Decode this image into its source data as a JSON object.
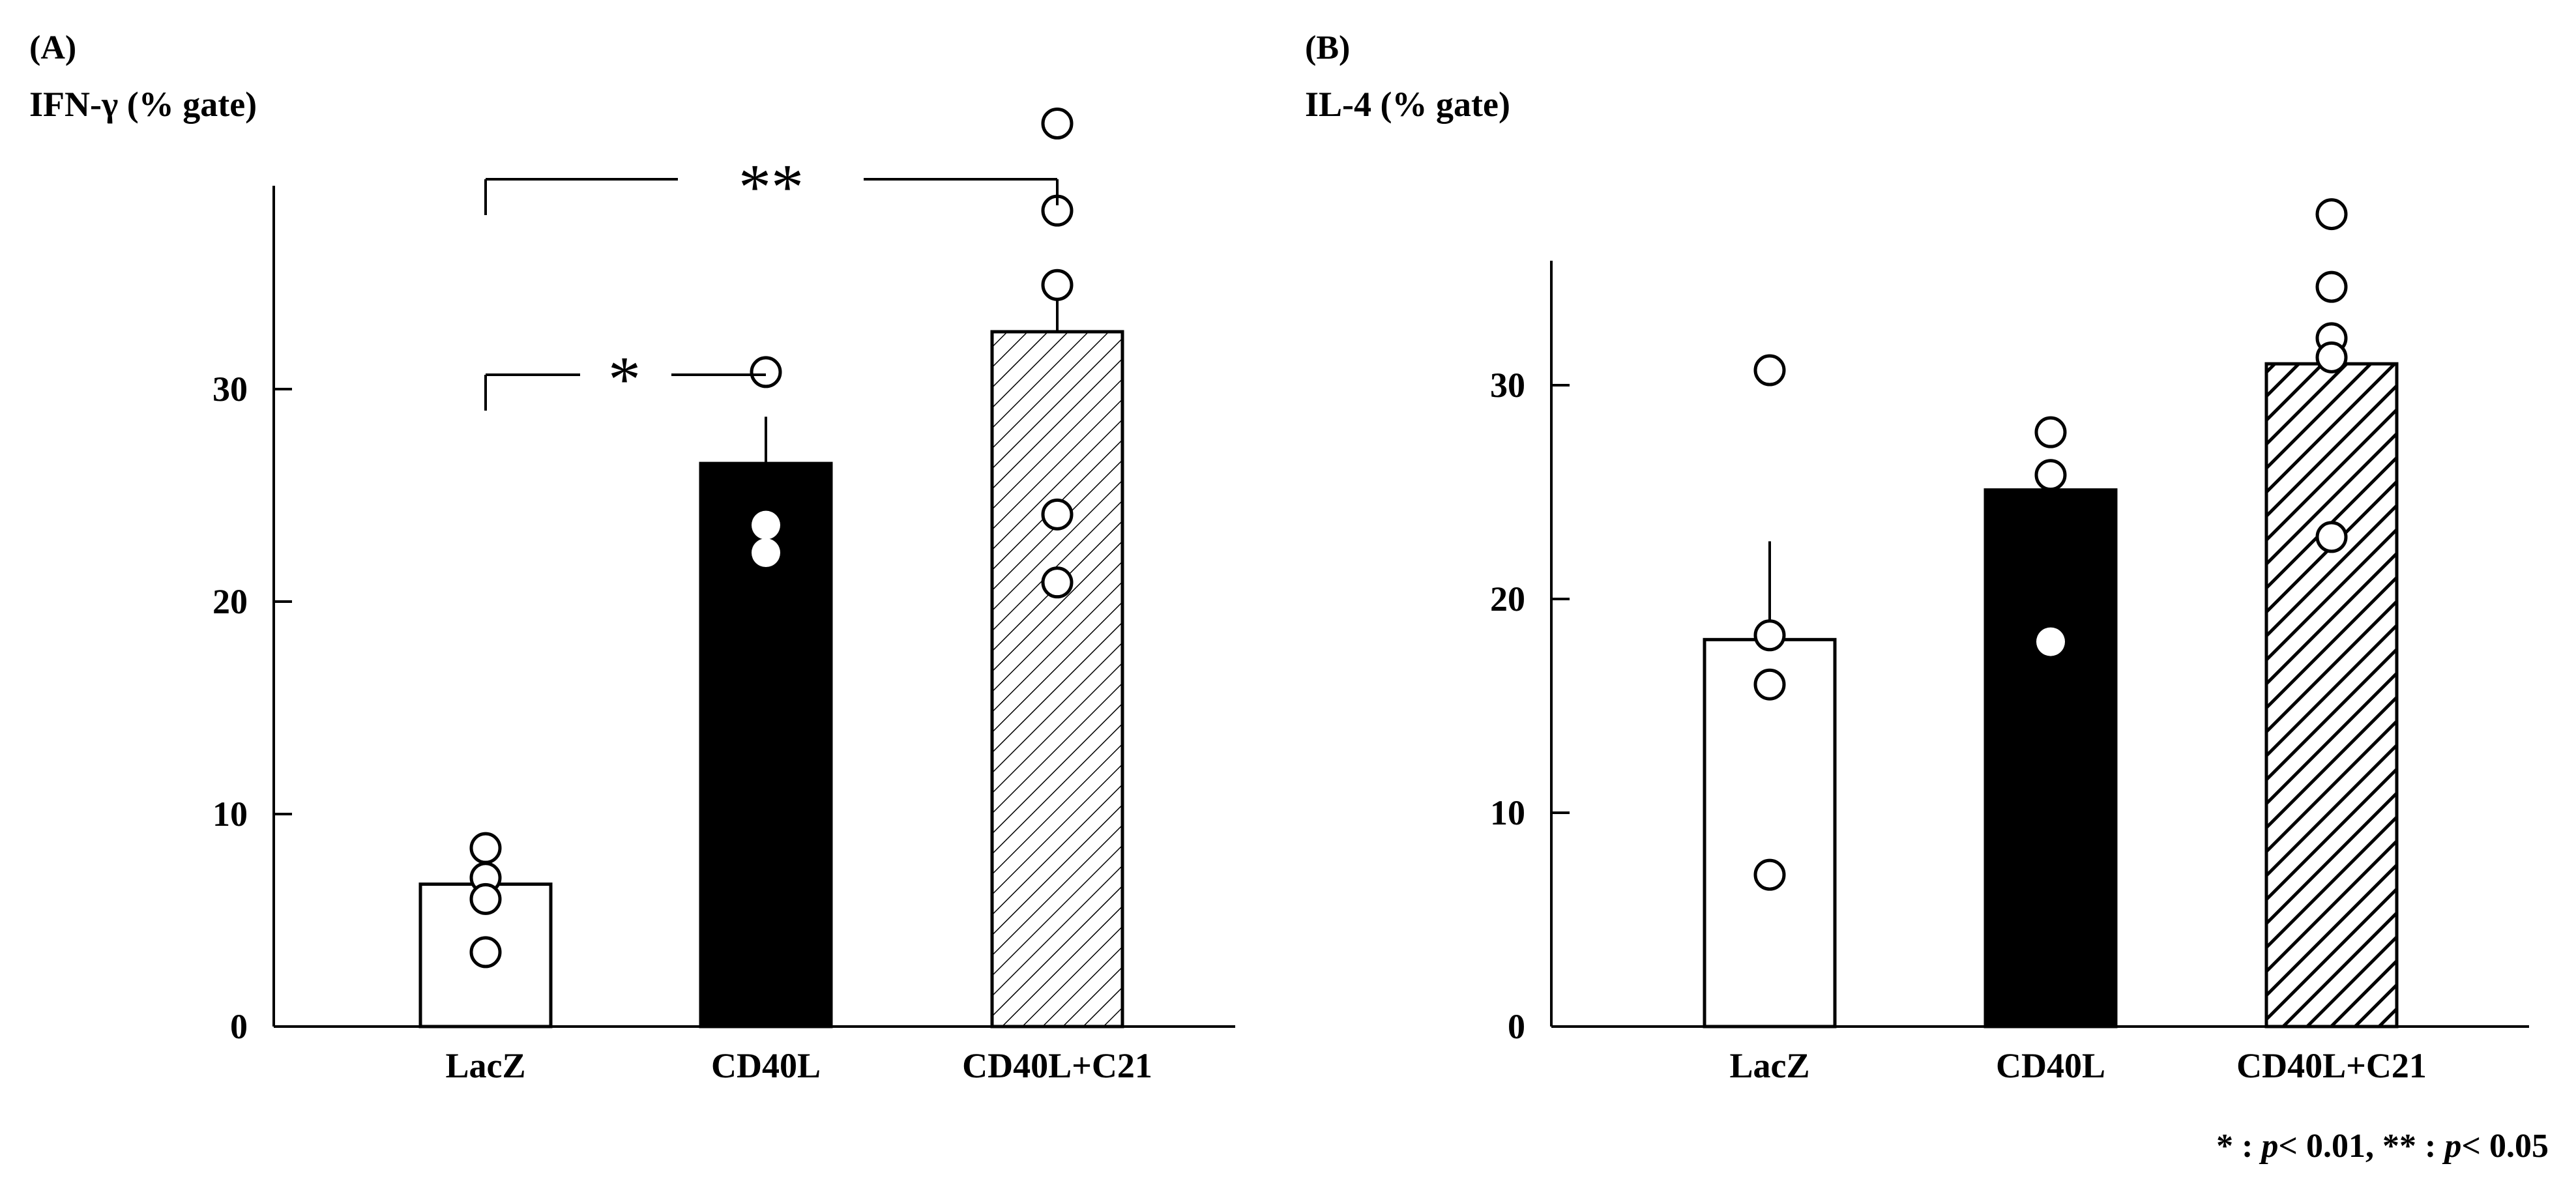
{
  "chart_data": [
    {
      "type": "bar",
      "panel_label": "(A)",
      "ylabel": "IFN-γ (% gate)",
      "xlabel": "",
      "categories": [
        "LacZ",
        "CD40L",
        "CD40L+C21"
      ],
      "values": [
        6.7,
        26.5,
        32.7
      ],
      "error_upper": [
        0,
        2.2,
        1.8
      ],
      "ylim": [
        0,
        40
      ],
      "yticks": [
        0,
        10,
        20,
        30
      ],
      "bar_fills": [
        "white",
        "black",
        "hatch-thin"
      ],
      "individual_points": [
        [
          8.4,
          7.0,
          6.0,
          3.5
        ],
        [
          30.8,
          23.6,
          22.3
        ],
        [
          42.5,
          38.4,
          34.9,
          24.1,
          20.9
        ]
      ],
      "point_fills": [
        [
          "white",
          "white",
          "white",
          "white"
        ],
        [
          "white",
          "white",
          "white"
        ],
        [
          "white",
          "white",
          "white",
          "white",
          "white"
        ]
      ],
      "significance": [
        {
          "from": 0,
          "to": 1,
          "label": "*",
          "y": 30.8
        },
        {
          "from": 0,
          "to": 2,
          "label": "**",
          "y": 40
        }
      ],
      "grid": false,
      "colors": {
        "bar_outline": "#000000",
        "black_bar": "#000000"
      }
    },
    {
      "type": "bar",
      "panel_label": "(B)",
      "ylabel": "IL-4 (% gate)",
      "xlabel": "",
      "categories": [
        "LacZ",
        "CD40L",
        "CD40L+C21"
      ],
      "values": [
        18.1,
        25.1,
        31.0
      ],
      "error_upper": [
        4.6,
        0.6,
        0.7
      ],
      "ylim": [
        0,
        36
      ],
      "yticks": [
        0,
        10,
        20,
        30
      ],
      "bar_fills": [
        "white",
        "black",
        "hatch-thick"
      ],
      "individual_points": [
        [
          30.7,
          18.3,
          16.0,
          7.1
        ],
        [
          27.8,
          25.8,
          18.0
        ],
        [
          38.0,
          34.6,
          32.2,
          31.3,
          22.9
        ]
      ],
      "point_fills": [
        [
          "white",
          "white",
          "white",
          "white"
        ],
        [
          "white",
          "white",
          "white"
        ],
        [
          "white",
          "white",
          "white",
          "white",
          "white"
        ]
      ],
      "grid": false
    }
  ],
  "footnote": "* : p< 0.01, ** : p< 0.05",
  "footnote_parts": {
    "star1": "* : ",
    "p1": "p",
    "rest1": "< 0.01, ** : ",
    "p2": "p",
    "rest2": "< 0.05"
  }
}
